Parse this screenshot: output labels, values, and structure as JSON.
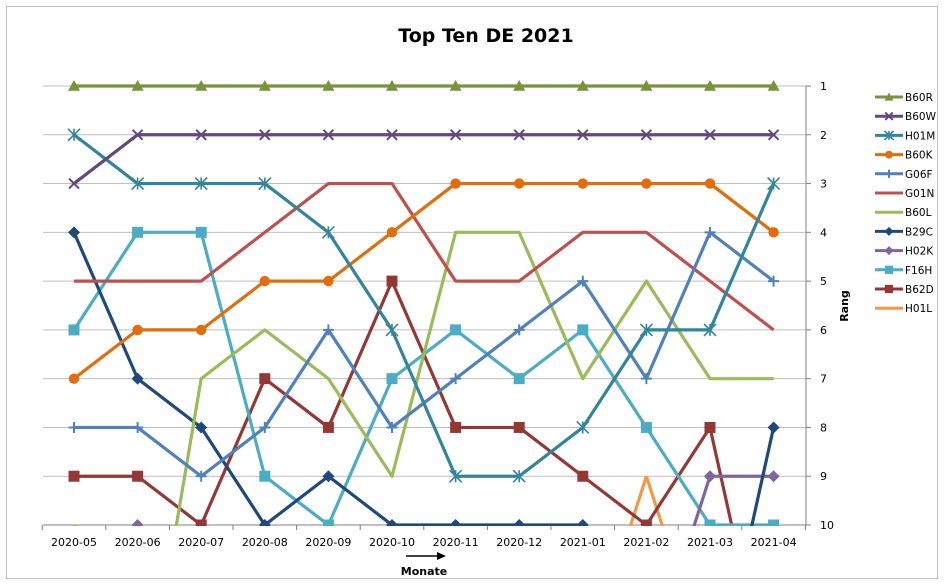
{
  "chart_data": {
    "type": "line",
    "title": "Top Ten DE 2021",
    "xlabel": "Monate",
    "ylabel": "Rang",
    "categories": [
      "2020-05",
      "2020-06",
      "2020-07",
      "2020-08",
      "2020-09",
      "2020-10",
      "2020-11",
      "2020-12",
      "2021-01",
      "2021-02",
      "2021-03",
      "2021-04"
    ],
    "yticks": [
      "1",
      "2",
      "3",
      "4",
      "5",
      "6",
      "7",
      "8",
      "9",
      "10"
    ],
    "ylim": [
      1,
      10
    ],
    "y_reversed": true,
    "grid": "horizontal",
    "legend_position": "right",
    "series": [
      {
        "name": "B60R",
        "color": "#77933C",
        "marker": "triangle",
        "values": [
          1,
          1,
          1,
          1,
          1,
          1,
          1,
          1,
          1,
          1,
          1,
          1
        ]
      },
      {
        "name": "B60W",
        "color": "#604A7B",
        "marker": "x",
        "values": [
          3,
          2,
          2,
          2,
          2,
          2,
          2,
          2,
          2,
          2,
          2,
          2
        ]
      },
      {
        "name": "H01M",
        "color": "#31859C",
        "marker": "star",
        "values": [
          2,
          3,
          3,
          3,
          4,
          6,
          9,
          9,
          8,
          6,
          6,
          3
        ]
      },
      {
        "name": "B60K",
        "color": "#E46C0A",
        "marker": "circle",
        "values": [
          7,
          6,
          6,
          5,
          5,
          4,
          3,
          3,
          3,
          3,
          3,
          4
        ]
      },
      {
        "name": "G06F",
        "color": "#4F81BD",
        "marker": "plus",
        "values": [
          8,
          8,
          9,
          8,
          6,
          8,
          7,
          6,
          5,
          7,
          4,
          5
        ]
      },
      {
        "name": "G01N",
        "color": "#C0504D",
        "marker": "dash",
        "values": [
          5,
          5,
          5,
          4,
          3,
          3,
          5,
          5,
          4,
          4,
          5,
          6
        ]
      },
      {
        "name": "B60L",
        "color": "#9BBB59",
        "marker": "dash",
        "values": [
          10,
          null,
          7,
          6,
          7,
          9,
          4,
          4,
          7,
          5,
          7,
          7
        ]
      },
      {
        "name": "B29C",
        "color": "#1F497D",
        "marker": "diamond",
        "values": [
          4,
          7,
          8,
          10,
          9,
          10,
          10,
          10,
          10,
          null,
          null,
          8
        ]
      },
      {
        "name": "H02K",
        "color": "#8064A2",
        "marker": "diamond",
        "values": [
          null,
          10,
          null,
          null,
          null,
          null,
          null,
          null,
          null,
          null,
          9,
          9
        ]
      },
      {
        "name": "F16H",
        "color": "#4BACC6",
        "marker": "square",
        "values": [
          6,
          4,
          4,
          9,
          10,
          7,
          6,
          7,
          6,
          8,
          10,
          10
        ]
      },
      {
        "name": "B62D",
        "color": "#953735",
        "marker": "square",
        "values": [
          9,
          9,
          10,
          7,
          8,
          5,
          8,
          8,
          9,
          10,
          8,
          null
        ]
      },
      {
        "name": "H01L",
        "color": "#F79646",
        "marker": "dash",
        "values": [
          null,
          null,
          null,
          null,
          null,
          null,
          null,
          null,
          null,
          9,
          null,
          null
        ]
      }
    ]
  }
}
